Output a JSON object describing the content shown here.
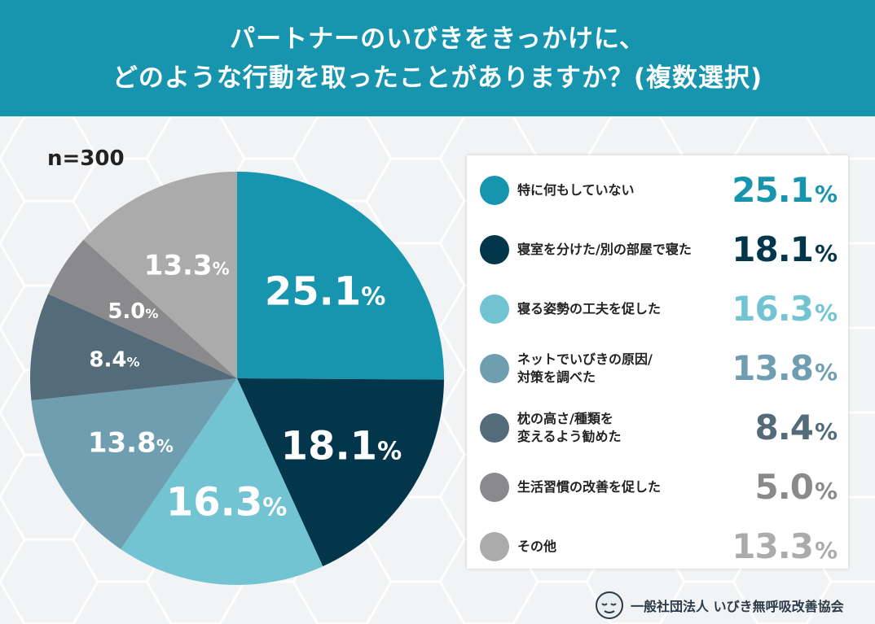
{
  "header": {
    "title_line1": "パートナーのいびきをきっかけに、",
    "title_line2": "どのような行動を取ったことがありますか？(複数選択)"
  },
  "sample_size": "n=300",
  "organization": "一般社団法人 いびき無呼吸改善協会",
  "chart_data": {
    "type": "pie",
    "title": "パートナーのいびきをきっかけに、どのような行動を取ったことがありますか？(複数選択)",
    "unit": "%",
    "start": "12 o'clock, clockwise",
    "slices": [
      {
        "label": "特に何もしていない",
        "value": 25.1,
        "value_text": "25.1",
        "color": "#1795ae"
      },
      {
        "label": "寝室を分けた/別の部屋で寝た",
        "value": 18.1,
        "value_text": "18.1",
        "color": "#04364b"
      },
      {
        "label": "寝る姿勢の工夫を促した",
        "value": 16.3,
        "value_text": "16.3",
        "color": "#72c4d2"
      },
      {
        "label": "ネットでいびきの原因/\n対策を調べた",
        "value": 13.8,
        "value_text": "13.8",
        "color": "#6f9eb0"
      },
      {
        "label": "枕の高さ/種類を\n変えるよう勧めた",
        "value": 8.4,
        "value_text": "8.4",
        "color": "#546c7a"
      },
      {
        "label": "生活習慣の改善を促した",
        "value": 5.0,
        "value_text": "5.0",
        "color": "#8a8a8d"
      },
      {
        "label": "その他",
        "value": 13.3,
        "value_text": "13.3",
        "color": "#ababab"
      }
    ]
  }
}
